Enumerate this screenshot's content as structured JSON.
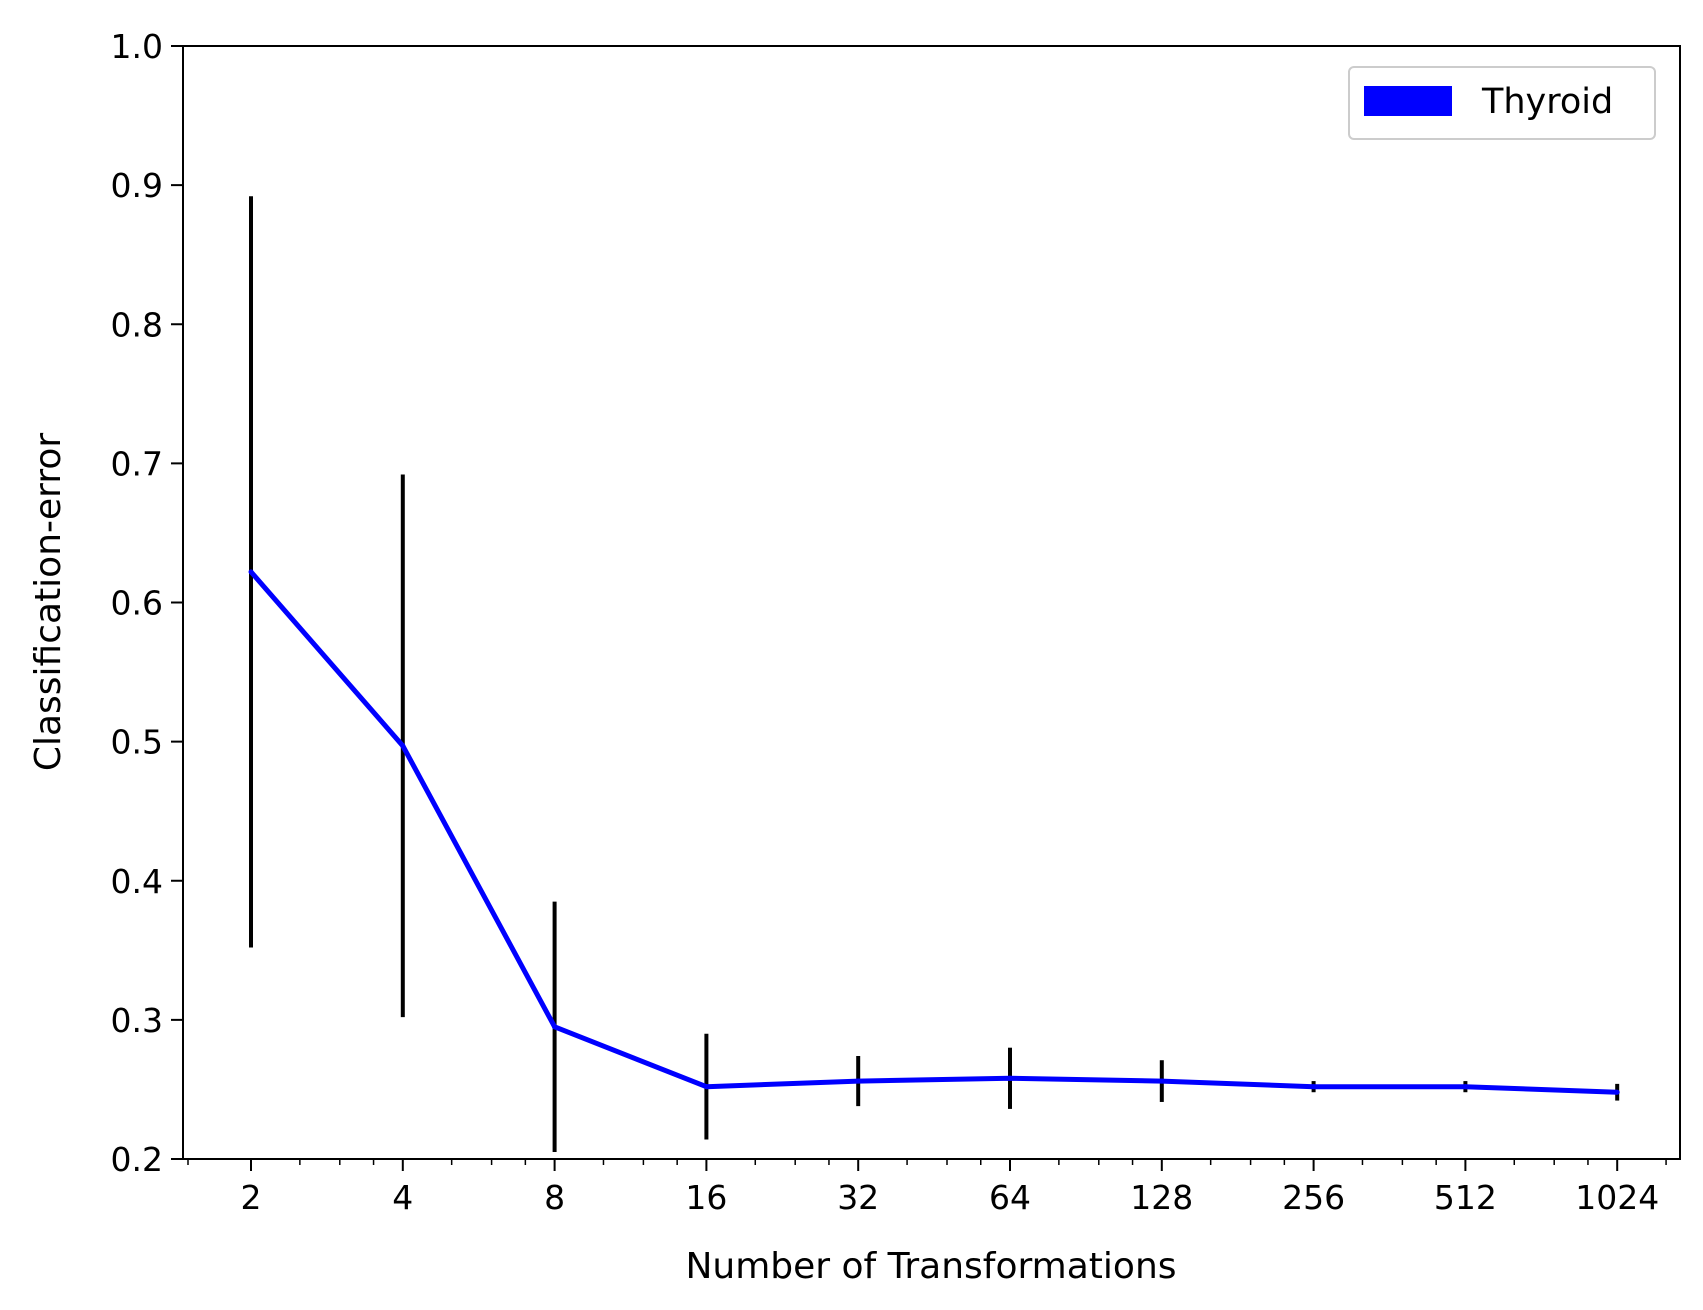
{
  "chart_data": {
    "type": "line",
    "title": "",
    "xlabel": "Number of Transformations",
    "ylabel": "Classification-error",
    "xscale": "log2",
    "x": [
      2,
      4,
      8,
      16,
      32,
      64,
      128,
      256,
      512,
      1024
    ],
    "x_tick_labels": [
      "2",
      "4",
      "8",
      "16",
      "32",
      "64",
      "128",
      "256",
      "512",
      "1024"
    ],
    "ylim": [
      0.2,
      1.0
    ],
    "y_ticks": [
      0.2,
      0.3,
      0.4,
      0.5,
      0.6,
      0.7,
      0.8,
      0.9,
      1.0
    ],
    "y_tick_labels": [
      "0.2",
      "0.3",
      "0.4",
      "0.5",
      "0.6",
      "0.7",
      "0.8",
      "0.9",
      "1.0"
    ],
    "grid": false,
    "legend_position": "top-right",
    "series": [
      {
        "name": "Thyroid",
        "color": "#0000ff",
        "values": [
          0.622,
          0.497,
          0.295,
          0.252,
          0.256,
          0.258,
          0.256,
          0.252,
          0.252,
          0.248
        ],
        "error": [
          0.27,
          0.195,
          0.09,
          0.038,
          0.018,
          0.022,
          0.015,
          0.004,
          0.004,
          0.006
        ]
      }
    ],
    "error_bar_color": "#000000"
  }
}
